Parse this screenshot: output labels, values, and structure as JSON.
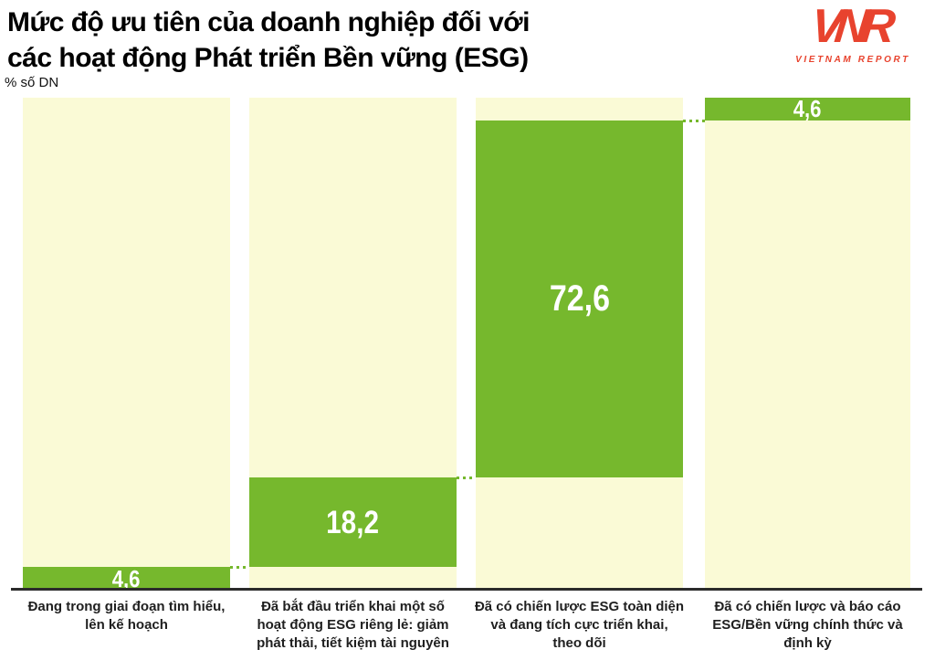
{
  "header": {
    "title": "Mức độ ưu tiên của doanh nghiệp đối với\ncác hoạt động Phát triển Bền vững (ESG)",
    "unit_label": "% số DN"
  },
  "logo": {
    "mark": "VNR",
    "text": "VIETNAM REPORT",
    "color": "#E8432E"
  },
  "chart_data": {
    "type": "bar",
    "subtype": "waterfall-stacked-percentage",
    "title": "Mức độ ưu tiên của doanh nghiệp đối với các hoạt động Phát triển Bền vững (ESG)",
    "ylabel": "% số DN",
    "ylim": [
      0,
      100
    ],
    "grid": false,
    "legend": false,
    "categories": [
      "Đang trong giai đoạn tìm hiểu,\nlên kế hoạch",
      "Đã bắt đầu triển khai một số\nhoạt động ESG riêng lẻ: giảm\nphát thải, tiết kiệm tài nguyên",
      "Đã có chiến lược ESG toàn diện\nvà đang tích cực triển khai,\ntheo dõi",
      "Đã có chiến lược và báo cáo\nESG/Bền vững chính thức và\nđịnh kỳ"
    ],
    "values": [
      4.6,
      18.2,
      72.6,
      4.6
    ],
    "value_labels": [
      "4,6",
      "18,2",
      "72,6",
      "4,6"
    ],
    "cumulative_start": [
      0,
      4.6,
      22.8,
      95.4
    ],
    "colors": {
      "bar_fill": "#76B82D",
      "bar_track": "#FAFAD6",
      "connector": "#76B82D",
      "axis_line": "#2B2B2B",
      "value_text": "#FFFFFF",
      "label_text": "#1F1F1F"
    }
  }
}
